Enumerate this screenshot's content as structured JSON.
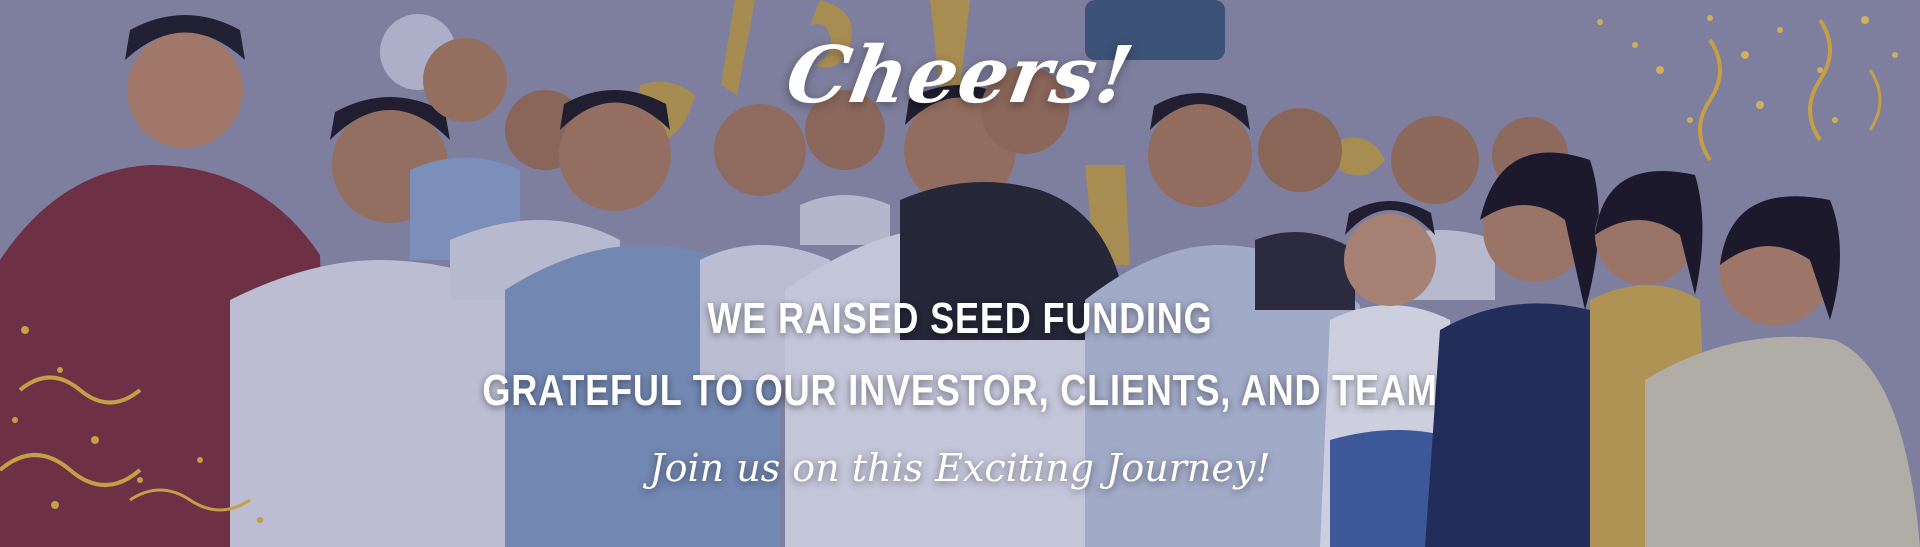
{
  "banner": {
    "cheers": "Cheers!",
    "headline_line1": "WE RAISED SEED FUNDING",
    "headline_line2": "GRATEFUL TO OUR INVESTOR, CLIENTS, AND TEAM",
    "tagline": "Join us on this Exciting Journey!"
  },
  "colors": {
    "overlay": "#4a4d8f",
    "text": "#ffffff",
    "confetti_gold": "#e2b53a"
  },
  "icons": [
    "team-photo",
    "confetti-left",
    "confetti-right",
    "balloon-letters"
  ]
}
